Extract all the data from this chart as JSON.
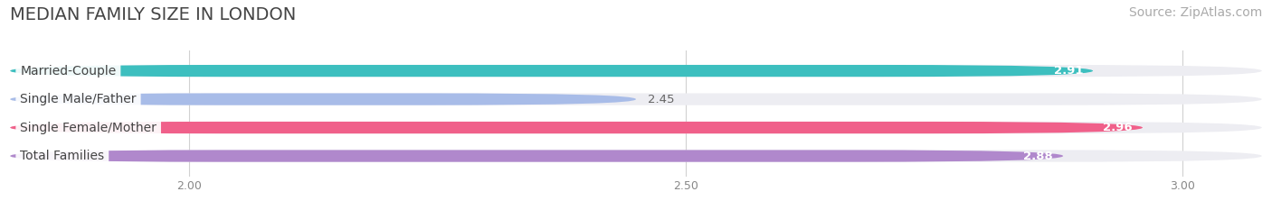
{
  "title": "MEDIAN FAMILY SIZE IN LONDON",
  "source": "Source: ZipAtlas.com",
  "categories": [
    "Married-Couple",
    "Single Male/Father",
    "Single Female/Mother",
    "Total Families"
  ],
  "values": [
    2.91,
    2.45,
    2.96,
    2.88
  ],
  "bar_colors": [
    "#3dbfbf",
    "#a8bce8",
    "#f0608a",
    "#b088cc"
  ],
  "bar_label_colors": [
    "white",
    "white",
    "white",
    "white"
  ],
  "value_label_colors": [
    "white",
    "#666666",
    "white",
    "white"
  ],
  "x_min": 1.82,
  "x_max": 3.08,
  "x_ticks": [
    2.0,
    2.5,
    3.0
  ],
  "x_tick_labels": [
    "2.00",
    "2.50",
    "3.00"
  ],
  "background_color": "#ffffff",
  "bar_bg_color": "#ededf2",
  "title_fontsize": 14,
  "source_fontsize": 10,
  "label_fontsize": 10,
  "value_fontsize": 9.5,
  "bar_height": 0.42
}
